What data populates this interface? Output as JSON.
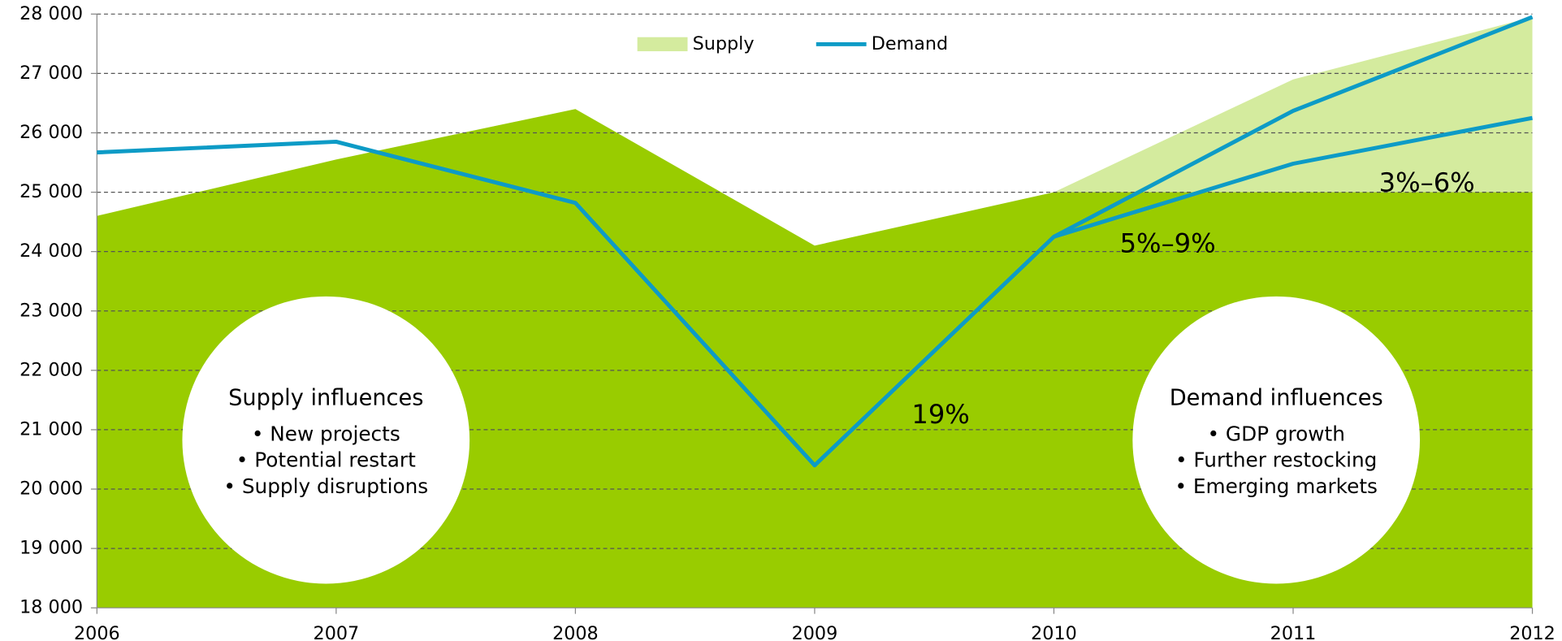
{
  "chart_data": {
    "type": "area-line",
    "x": [
      2006,
      2007,
      2008,
      2009,
      2010,
      2011,
      2012
    ],
    "xlim": [
      2006,
      2012
    ],
    "xticks": [
      2006,
      2007,
      2008,
      2009,
      2010,
      2011,
      2012
    ],
    "ylim": [
      18000,
      28000
    ],
    "yticks": [
      {
        "value": 18000,
        "label": "18 000"
      },
      {
        "value": 19000,
        "label": "19 000"
      },
      {
        "value": 20000,
        "label": "20 000"
      },
      {
        "value": 21000,
        "label": "21 000"
      },
      {
        "value": 22000,
        "label": "22 000"
      },
      {
        "value": 23000,
        "label": "23 000"
      },
      {
        "value": 24000,
        "label": "24 000"
      },
      {
        "value": 25000,
        "label": "25 000"
      },
      {
        "value": 26000,
        "label": "26 000"
      },
      {
        "value": 27000,
        "label": "27 000"
      },
      {
        "value": 28000,
        "label": "28 000"
      }
    ],
    "grid": true,
    "series": [
      {
        "name": "Supply",
        "kind": "area",
        "color": "#d4eb9e",
        "values": [
          24600,
          25550,
          26400,
          24100,
          25000,
          26900,
          27950
        ]
      },
      {
        "kind": "area",
        "color": "#99cc00",
        "values": [
          24600,
          25550,
          26400,
          24100,
          25000,
          25000,
          25000
        ]
      },
      {
        "name": "Demand",
        "kind": "line",
        "color": "#0d9bc6",
        "values": [
          25670,
          25850,
          24820,
          20400,
          24250,
          26370,
          27950
        ]
      },
      {
        "kind": "line",
        "color": "#0d9bc6",
        "values": [
          null,
          null,
          null,
          null,
          24250,
          25480,
          26250
        ]
      }
    ],
    "legend": "top",
    "annotations": [
      "19%",
      "5%–9%",
      "3%–6%"
    ],
    "boxes": [
      {
        "title": "Supply influences",
        "items": [
          "• New projects",
          "• Potential restart",
          "• Supply disruptions"
        ]
      },
      {
        "title": "Demand influences",
        "items": [
          "• GDP growth",
          "• Further restocking",
          "• Emerging markets"
        ]
      }
    ]
  }
}
